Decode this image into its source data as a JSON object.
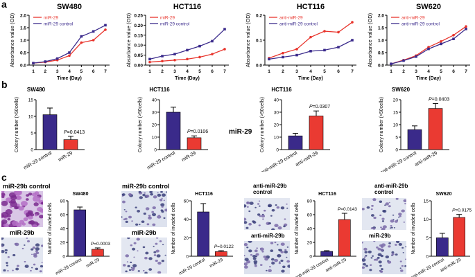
{
  "panel_letters": {
    "a": "a",
    "b": "b",
    "c": "c"
  },
  "colors": {
    "red": "#e8342c",
    "blue": "#3b2b8c",
    "bar_blue": "#3a2a8a",
    "bar_red": "#ea3a32"
  },
  "mir29_side_label": "miR-29",
  "chart_data": [
    {
      "type": "line",
      "title": "SW480",
      "xlabel": "Time (Day)",
      "ylabel": "Absorbance value (OD)",
      "x": [
        1,
        2,
        3,
        4,
        5,
        6,
        7
      ],
      "xticks": [
        "1",
        "2",
        "3",
        "4",
        "5",
        "6",
        "7"
      ],
      "ylim": [
        0,
        2.0
      ],
      "yticks": [
        "0.0",
        "0.5",
        "1.0",
        "1.5",
        "2.0"
      ],
      "series": [
        {
          "name": "miR-29",
          "color": "#e8342c",
          "values": [
            0.08,
            0.12,
            0.2,
            0.38,
            0.9,
            1.0,
            1.42
          ]
        },
        {
          "name": "miR-29 control",
          "color": "#3b2b8c",
          "values": [
            0.08,
            0.14,
            0.26,
            0.5,
            1.15,
            1.35,
            1.6
          ]
        }
      ],
      "legend": "top-left"
    },
    {
      "type": "line",
      "title": "HCT116",
      "xlabel": "Time (Day)",
      "ylabel": "Absorbance value (OD)",
      "x": [
        1,
        2,
        3,
        4,
        5,
        6,
        7
      ],
      "xticks": [
        "1",
        "2",
        "3",
        "4",
        "5",
        "6",
        "7"
      ],
      "ylim": [
        0,
        0.25
      ],
      "yticks": [
        "0.00",
        "0.05",
        "0.10",
        "0.15",
        "0.20",
        "0.25"
      ],
      "series": [
        {
          "name": "miR-29",
          "color": "#e8342c",
          "values": [
            0.015,
            0.02,
            0.025,
            0.03,
            0.04,
            0.055,
            0.08
          ]
        },
        {
          "name": "miR-29 control",
          "color": "#3b2b8c",
          "values": [
            0.03,
            0.045,
            0.055,
            0.075,
            0.095,
            0.12,
            0.18
          ]
        }
      ],
      "legend": "top-left"
    },
    {
      "type": "line",
      "title": "HCT116",
      "xlabel": "Time (Day)",
      "ylabel": "Absorbance value (OD)",
      "x": [
        1,
        2,
        3,
        4,
        5,
        6,
        7
      ],
      "xticks": [
        "1",
        "2",
        "3",
        "4",
        "5",
        "6",
        "7"
      ],
      "ylim": [
        0,
        0.25
      ],
      "yticks": [
        "0.0",
        "0.1",
        "0.2"
      ],
      "series": [
        {
          "name": "anti-miR-29",
          "color": "#e8342c",
          "values": [
            0.035,
            0.06,
            0.08,
            0.14,
            0.17,
            0.165,
            0.215
          ]
        },
        {
          "name": "anti-miR-29 control",
          "color": "#3b2b8c",
          "values": [
            0.03,
            0.04,
            0.05,
            0.07,
            0.075,
            0.09,
            0.125
          ]
        }
      ],
      "legend": "top-left"
    },
    {
      "type": "line",
      "title": "SW620",
      "xlabel": "Time (Day)",
      "ylabel": "Absorbance value (OD)",
      "x": [
        1,
        2,
        3,
        4,
        5,
        6,
        7
      ],
      "xticks": [
        "1",
        "2",
        "3",
        "4",
        "5",
        "6",
        "7"
      ],
      "ylim": [
        0,
        2.0
      ],
      "yticks": [
        "0.0",
        "0.5",
        "1.0",
        "1.5",
        "2.0"
      ],
      "series": [
        {
          "name": "anti-miR-29",
          "color": "#e8342c",
          "values": [
            0.05,
            0.2,
            0.38,
            0.72,
            0.95,
            1.2,
            1.55
          ]
        },
        {
          "name": "anti-miR-29 control",
          "color": "#3b2b8c",
          "values": [
            0.05,
            0.18,
            0.34,
            0.65,
            0.85,
            1.05,
            1.45
          ]
        }
      ],
      "legend": "top-left"
    },
    {
      "type": "bar",
      "title": "SW480",
      "ylabel": "Colony number (>50cells)",
      "categories": [
        "miR-29 control",
        "miR-29"
      ],
      "values": [
        10.5,
        3.0
      ],
      "errors": [
        2.0,
        1.0
      ],
      "ylim": [
        0,
        15
      ],
      "yticks": [
        "0",
        "5",
        "10",
        "15"
      ],
      "pvalue": "P=0.0413"
    },
    {
      "type": "bar",
      "title": "HCT116",
      "ylabel": "Colony number (>50cells)",
      "categories": [
        "miR-29 control",
        "miR-29"
      ],
      "values": [
        30,
        9.5
      ],
      "errors": [
        4,
        1.5
      ],
      "ylim": [
        0,
        40
      ],
      "yticks": [
        "0",
        "10",
        "20",
        "30",
        "40"
      ],
      "pvalue": "P=0.0106"
    },
    {
      "type": "bar",
      "title": "HCT116",
      "ylabel": "Colony number (>50cells)",
      "categories": [
        "anti-miR-29 control",
        "anti-miR-29"
      ],
      "values": [
        11,
        27
      ],
      "errors": [
        2,
        4
      ],
      "ylim": [
        0,
        40
      ],
      "yticks": [
        "0",
        "10",
        "20",
        "30",
        "40"
      ],
      "pvalue": "P=0.0307"
    },
    {
      "type": "bar",
      "title": "SW620",
      "ylabel": "Colony number (>50cells)",
      "categories": [
        "anti-miR-29 control",
        "anti-miR-29"
      ],
      "values": [
        8,
        16.5
      ],
      "errors": [
        1.5,
        2
      ],
      "ylim": [
        0,
        20
      ],
      "yticks": [
        "0",
        "5",
        "10",
        "15",
        "20"
      ],
      "pvalue": "P=0.0403"
    },
    {
      "type": "bar",
      "title": "SW480",
      "ylabel": "Number of invaded cells",
      "categories": [
        "miR-29 control",
        "miR-29"
      ],
      "values": [
        67,
        10
      ],
      "errors": [
        4,
        2
      ],
      "ylim": [
        0,
        80
      ],
      "yticks": [
        "0",
        "20",
        "40",
        "60",
        "80"
      ],
      "pvalue": "P=0.0003"
    },
    {
      "type": "bar",
      "title": "HCT116",
      "ylabel": "Number of invaded cells",
      "categories": [
        "miR-29 control",
        "miR-29"
      ],
      "values": [
        48,
        5
      ],
      "errors": [
        9,
        1
      ],
      "ylim": [
        0,
        60
      ],
      "yticks": [
        "0",
        "20",
        "40",
        "60"
      ],
      "pvalue": "P=0.0122"
    },
    {
      "type": "bar",
      "title": "HCT116",
      "ylabel": "Number of invaded cells",
      "categories": [
        "anti-miR-29 control",
        "anti-miR-29"
      ],
      "values": [
        7,
        53
      ],
      "errors": [
        1,
        9
      ],
      "ylim": [
        0,
        80
      ],
      "yticks": [
        "0",
        "20",
        "40",
        "60",
        "80"
      ],
      "pvalue": "P=0.0143"
    },
    {
      "type": "bar",
      "title": "SW620",
      "ylabel": "Number of invaded cells",
      "categories": [
        "anti-miR-29 control",
        "anti-miR-29"
      ],
      "values": [
        5,
        10.5
      ],
      "errors": [
        1.2,
        0.8
      ],
      "ylim": [
        0,
        15
      ],
      "yticks": [
        "0",
        "5",
        "10",
        "15"
      ],
      "pvalue": "P=0.0175"
    }
  ],
  "photos": [
    {
      "label": "miR-29b control",
      "tone": "dense"
    },
    {
      "label": "miR-29b",
      "tone": "sparse"
    },
    {
      "label": "miR-29b control",
      "tone": "medium"
    },
    {
      "label": "miR-29b",
      "tone": "sparse"
    },
    {
      "label": "anti-miR-29b control",
      "tone": "sparse"
    },
    {
      "label": "anti-miR-29b",
      "tone": "medium"
    },
    {
      "label": "anti-miR-29b control",
      "tone": "sparse"
    },
    {
      "label": "miR-29b",
      "tone": "medium"
    }
  ]
}
